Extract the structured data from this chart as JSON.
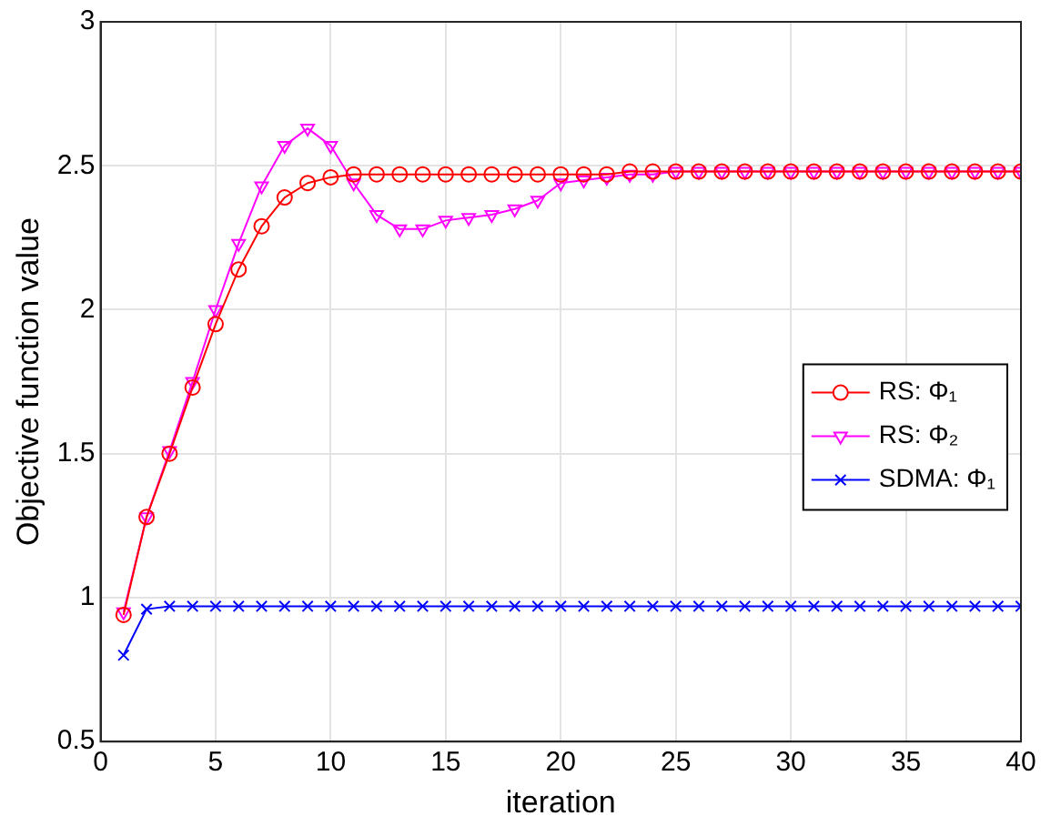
{
  "chart_data": {
    "type": "line",
    "xlabel": "iteration",
    "ylabel": "Objective function value",
    "x": [
      1,
      2,
      3,
      4,
      5,
      6,
      7,
      8,
      9,
      10,
      11,
      12,
      13,
      14,
      15,
      16,
      17,
      18,
      19,
      20,
      21,
      22,
      23,
      24,
      25,
      26,
      27,
      28,
      29,
      30,
      31,
      32,
      33,
      34,
      35,
      36,
      37,
      38,
      39,
      40
    ],
    "xlim": [
      0,
      40
    ],
    "xticks": [
      0,
      5,
      10,
      15,
      20,
      25,
      30,
      35,
      40
    ],
    "ylim": [
      0.5,
      3
    ],
    "yticks": [
      0.5,
      1,
      1.5,
      2,
      2.5,
      3
    ],
    "grid": true,
    "legend": "right",
    "line_style": "solid",
    "series": [
      {
        "name": "RS: Φ₁",
        "color": "#ff0000",
        "marker": "circle",
        "values": [
          0.94,
          1.28,
          1.5,
          1.73,
          1.95,
          2.14,
          2.29,
          2.39,
          2.44,
          2.46,
          2.47,
          2.47,
          2.47,
          2.47,
          2.47,
          2.47,
          2.47,
          2.47,
          2.47,
          2.47,
          2.47,
          2.47,
          2.48,
          2.48,
          2.48,
          2.48,
          2.48,
          2.48,
          2.48,
          2.48,
          2.48,
          2.48,
          2.48,
          2.48,
          2.48,
          2.48,
          2.48,
          2.48,
          2.48,
          2.48
        ]
      },
      {
        "name": "RS: Φ₂",
        "color": "#ff00ff",
        "marker": "triangle",
        "values": [
          0.95,
          1.28,
          1.51,
          1.75,
          2.0,
          2.23,
          2.43,
          2.57,
          2.63,
          2.57,
          2.44,
          2.33,
          2.28,
          2.28,
          2.31,
          2.32,
          2.33,
          2.35,
          2.38,
          2.44,
          2.45,
          2.46,
          2.47,
          2.47,
          2.48,
          2.48,
          2.48,
          2.48,
          2.48,
          2.48,
          2.48,
          2.48,
          2.48,
          2.48,
          2.48,
          2.48,
          2.48,
          2.48,
          2.48,
          2.48
        ]
      },
      {
        "name": "SDMA: Φ₁",
        "color": "#0000ff",
        "marker": "cross",
        "values": [
          0.8,
          0.96,
          0.97,
          0.97,
          0.97,
          0.97,
          0.97,
          0.97,
          0.97,
          0.97,
          0.97,
          0.97,
          0.97,
          0.97,
          0.97,
          0.97,
          0.97,
          0.97,
          0.97,
          0.97,
          0.97,
          0.97,
          0.97,
          0.97,
          0.97,
          0.97,
          0.97,
          0.97,
          0.97,
          0.97,
          0.97,
          0.97,
          0.97,
          0.97,
          0.97,
          0.97,
          0.97,
          0.97,
          0.97,
          0.97
        ]
      }
    ]
  }
}
